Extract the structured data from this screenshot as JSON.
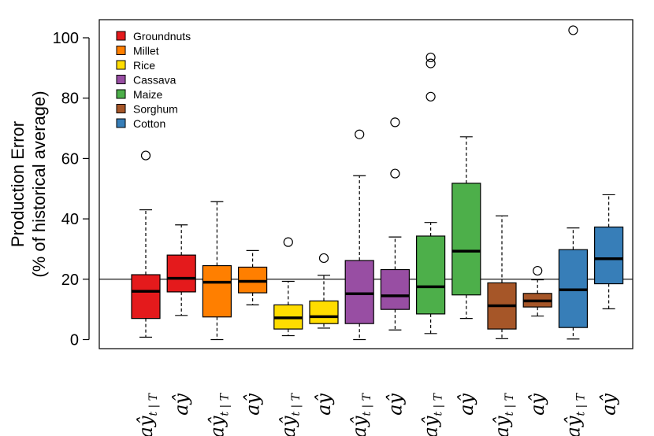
{
  "colors": {
    "groundnuts": "#e41a1c",
    "millet": "#ff7f00",
    "rice": "#ffdd00",
    "cassava": "#984ea3",
    "maize": "#4daf4a",
    "sorghum": "#a65628",
    "cotton": "#377eb8"
  },
  "chart_data": {
    "type": "boxplot",
    "title": "",
    "xlabel": "",
    "ylabel": [
      "Production Error",
      "(% of historical average)"
    ],
    "ylim": [
      -3,
      106
    ],
    "yticks": [
      "0",
      "20",
      "40",
      "60",
      "80",
      "100"
    ],
    "reference_line": 20,
    "legend": {
      "position": "top-left",
      "entries": [
        {
          "label": "Groundnuts",
          "color_key": "groundnuts"
        },
        {
          "label": "Millet",
          "color_key": "millet"
        },
        {
          "label": "Rice",
          "color_key": "rice"
        },
        {
          "label": "Cassava",
          "color_key": "cassava"
        },
        {
          "label": "Maize",
          "color_key": "maize"
        },
        {
          "label": "Sorghum",
          "color_key": "sorghum"
        },
        {
          "label": "Cotton",
          "color_key": "cotton"
        }
      ]
    },
    "x_label_templates": {
      "forecast": {
        "main": "aŷ",
        "sub": "t | T"
      },
      "final": {
        "main": "aŷ",
        "sub": ""
      }
    },
    "boxes": [
      {
        "crop": "Groundnuts",
        "color_key": "groundnuts",
        "label_type": "forecast",
        "whisker_low": 0.8,
        "q1": 7,
        "median": 16,
        "q3": 21.5,
        "whisker_high": 43,
        "outliers": [
          61
        ]
      },
      {
        "crop": "Groundnuts",
        "color_key": "groundnuts",
        "label_type": "final",
        "whisker_low": 8,
        "q1": 15.8,
        "median": 20.3,
        "q3": 28,
        "whisker_high": 38,
        "outliers": []
      },
      {
        "crop": "Millet",
        "color_key": "millet",
        "label_type": "forecast",
        "whisker_low": 0,
        "q1": 7.5,
        "median": 19,
        "q3": 24.5,
        "whisker_high": 45.7,
        "outliers": []
      },
      {
        "crop": "Millet",
        "color_key": "millet",
        "label_type": "final",
        "whisker_low": 11.5,
        "q1": 15.5,
        "median": 19.3,
        "q3": 24,
        "whisker_high": 29.5,
        "outliers": []
      },
      {
        "crop": "Rice",
        "color_key": "rice",
        "label_type": "forecast",
        "whisker_low": 1.3,
        "q1": 3.5,
        "median": 7.2,
        "q3": 11.5,
        "whisker_high": 19.3,
        "outliers": [
          32.3
        ]
      },
      {
        "crop": "Rice",
        "color_key": "rice",
        "label_type": "final",
        "whisker_low": 3.8,
        "q1": 5.3,
        "median": 7.6,
        "q3": 12.8,
        "whisker_high": 21.3,
        "outliers": [
          27
        ]
      },
      {
        "crop": "Cassava",
        "color_key": "cassava",
        "label_type": "forecast",
        "whisker_low": 0,
        "q1": 5.3,
        "median": 15.2,
        "q3": 26.2,
        "whisker_high": 54.3,
        "outliers": [
          68
        ]
      },
      {
        "crop": "Cassava",
        "color_key": "cassava",
        "label_type": "final",
        "whisker_low": 3.2,
        "q1": 10,
        "median": 14.5,
        "q3": 23.2,
        "whisker_high": 34,
        "outliers": [
          55,
          72
        ]
      },
      {
        "crop": "Maize",
        "color_key": "maize",
        "label_type": "forecast",
        "whisker_low": 2,
        "q1": 8.5,
        "median": 17.5,
        "q3": 34.3,
        "whisker_high": 38.8,
        "outliers": [
          80.5,
          91.5,
          93.5
        ]
      },
      {
        "crop": "Maize",
        "color_key": "maize",
        "label_type": "final",
        "whisker_low": 7,
        "q1": 14.8,
        "median": 29.3,
        "q3": 51.8,
        "whisker_high": 67.2,
        "outliers": []
      },
      {
        "crop": "Sorghum",
        "color_key": "sorghum",
        "label_type": "forecast",
        "whisker_low": 0.3,
        "q1": 3.5,
        "median": 11.2,
        "q3": 18.8,
        "whisker_high": 41,
        "outliers": []
      },
      {
        "crop": "Sorghum",
        "color_key": "sorghum",
        "label_type": "final",
        "whisker_low": 7.8,
        "q1": 10.8,
        "median": 12.8,
        "q3": 15.3,
        "whisker_high": 19.8,
        "outliers": [
          22.8
        ]
      },
      {
        "crop": "Cotton",
        "color_key": "cotton",
        "label_type": "forecast",
        "whisker_low": 0.2,
        "q1": 4,
        "median": 16.5,
        "q3": 29.8,
        "whisker_high": 37,
        "outliers": [
          102.5
        ]
      },
      {
        "crop": "Cotton",
        "color_key": "cotton",
        "label_type": "final",
        "whisker_low": 10.2,
        "q1": 18.5,
        "median": 26.8,
        "q3": 37.3,
        "whisker_high": 48,
        "outliers": []
      }
    ]
  }
}
